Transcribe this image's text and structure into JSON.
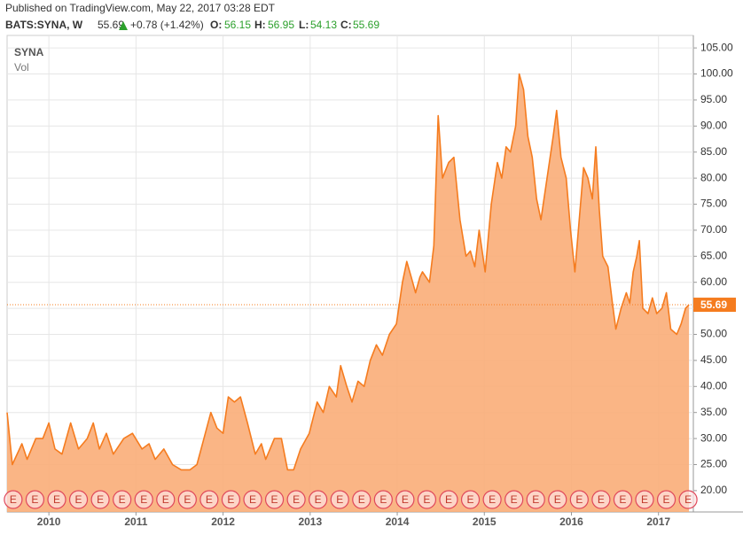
{
  "header": {
    "published": "Published on TradingView.com, May 22, 2017 03:28 EDT",
    "symbol": "BATS:SYNA, W",
    "last": "55.69",
    "change": "+0.78 (+1.42%)",
    "o_label": "O:",
    "o": "56.15",
    "h_label": "H:",
    "h": "56.95",
    "l_label": "L:",
    "l": "54.13",
    "c_label": "C:",
    "c": "55.69"
  },
  "chart_data": {
    "type": "area",
    "title": "SYNA",
    "subtitle": "Vol",
    "xlim": [
      2009.52,
      2017.4
    ],
    "xticks": [
      2010,
      2011,
      2012,
      2013,
      2014,
      2015,
      2016,
      2017
    ],
    "ylim": [
      15.9,
      107.4
    ],
    "yticks": [
      {
        "value": 20,
        "label": "20.00"
      },
      {
        "value": 25,
        "label": "25.00"
      },
      {
        "value": 30,
        "label": "30.00"
      },
      {
        "value": 35,
        "label": "35.00"
      },
      {
        "value": 40,
        "label": "40.00"
      },
      {
        "value": 45,
        "label": "45.00"
      },
      {
        "value": 50,
        "label": "50.00"
      },
      {
        "value": 55,
        "label": "55.00"
      },
      {
        "value": 60,
        "label": "60.00"
      },
      {
        "value": 65,
        "label": "65.00"
      },
      {
        "value": 70,
        "label": "70.00"
      },
      {
        "value": 75,
        "label": "75.00"
      },
      {
        "value": 80,
        "label": "80.00"
      },
      {
        "value": 85,
        "label": "85.00"
      },
      {
        "value": 90,
        "label": "90.00"
      },
      {
        "value": 95,
        "label": "95.00"
      },
      {
        "value": 100,
        "label": "100.00"
      },
      {
        "value": 105,
        "label": "105.00"
      }
    ],
    "grid": true,
    "last_price": 55.69,
    "series": [
      {
        "name": "SYNA",
        "color": "#f57c1f",
        "fill": "#f9ad78",
        "x": [
          2009.52,
          2009.58,
          2009.69,
          2009.75,
          2009.85,
          2009.93,
          2010.0,
          2010.07,
          2010.15,
          2010.25,
          2010.34,
          2010.44,
          2010.51,
          2010.58,
          2010.66,
          2010.74,
          2010.86,
          2010.96,
          2011.07,
          2011.15,
          2011.22,
          2011.32,
          2011.42,
          2011.52,
          2011.62,
          2011.7,
          2011.78,
          2011.86,
          2011.93,
          2012.0,
          2012.06,
          2012.13,
          2012.2,
          2012.28,
          2012.37,
          2012.44,
          2012.49,
          2012.59,
          2012.67,
          2012.74,
          2012.81,
          2012.89,
          2012.99,
          2013.08,
          2013.15,
          2013.22,
          2013.3,
          2013.35,
          2013.42,
          2013.48,
          2013.55,
          2013.62,
          2013.69,
          2013.76,
          2013.83,
          2013.91,
          2013.99,
          2014.06,
          2014.11,
          2014.16,
          2014.21,
          2014.26,
          2014.29,
          2014.37,
          2014.42,
          2014.47,
          2014.52,
          2014.59,
          2014.65,
          2014.72,
          2014.79,
          2014.84,
          2014.89,
          2014.94,
          2015.01,
          2015.08,
          2015.15,
          2015.2,
          2015.25,
          2015.3,
          2015.36,
          2015.4,
          2015.45,
          2015.5,
          2015.55,
          2015.6,
          2015.65,
          2015.72,
          2015.79,
          2015.83,
          2015.88,
          2015.94,
          2015.99,
          2016.04,
          2016.09,
          2016.14,
          2016.19,
          2016.24,
          2016.28,
          2016.32,
          2016.36,
          2016.42,
          2016.47,
          2016.51,
          2016.57,
          2016.63,
          2016.67,
          2016.71,
          2016.75,
          2016.78,
          2016.82,
          2016.88,
          2016.93,
          2016.98,
          2017.04,
          2017.09,
          2017.14,
          2017.21,
          2017.26,
          2017.31,
          2017.35
        ],
        "values": [
          35,
          25,
          29,
          26,
          30,
          30,
          33,
          28,
          27,
          33,
          28,
          30,
          33,
          28,
          31,
          27,
          30,
          31,
          28,
          29,
          26,
          28,
          25,
          24,
          24,
          25,
          30,
          35,
          32,
          31,
          38,
          37,
          38,
          33,
          27,
          29,
          26,
          30,
          30,
          24,
          24,
          28,
          31,
          37,
          35,
          40,
          38,
          44,
          40,
          37,
          41,
          40,
          45,
          48,
          46,
          50,
          52,
          60,
          64,
          61,
          58,
          61,
          62,
          60,
          67,
          92,
          80,
          83,
          84,
          72,
          65,
          66,
          63,
          70,
          62,
          75,
          83,
          80,
          86,
          85,
          90,
          100,
          97,
          88,
          84,
          76,
          72,
          80,
          88,
          93,
          84,
          80,
          70,
          62,
          72,
          82,
          80,
          76,
          86,
          74,
          65,
          63,
          56,
          51,
          55,
          58,
          56,
          62,
          65,
          68,
          55,
          54,
          57,
          54,
          55,
          58,
          51,
          50,
          52,
          55,
          55.69
        ]
      }
    ],
    "earnings": {
      "label": "E",
      "x": [
        2009.59,
        2009.84,
        2010.09,
        2010.34,
        2010.59,
        2010.84,
        2011.09,
        2011.34,
        2011.59,
        2011.84,
        2012.09,
        2012.34,
        2012.59,
        2012.84,
        2013.09,
        2013.34,
        2013.59,
        2013.84,
        2014.09,
        2014.34,
        2014.59,
        2014.84,
        2015.09,
        2015.34,
        2015.59,
        2015.84,
        2016.09,
        2016.34,
        2016.59,
        2016.84,
        2017.09,
        2017.34
      ]
    }
  }
}
